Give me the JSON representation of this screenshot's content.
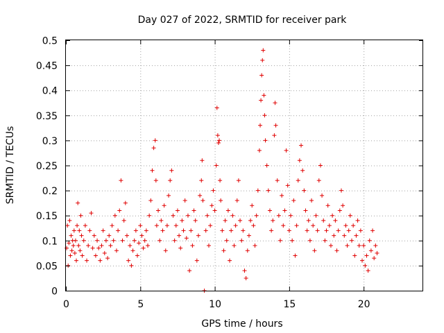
{
  "chart_data": {
    "type": "scatter",
    "title": "Day 027 of 2022, SRMTID for receiver park",
    "xlabel": "GPS time / hours",
    "ylabel": "SRMTID / TECUs",
    "xlim": [
      0,
      24
    ],
    "ylim": [
      0,
      0.5
    ],
    "xticks": [
      0,
      5,
      10,
      15,
      20
    ],
    "yticks": [
      0,
      0.05,
      0.1,
      0.15,
      0.2,
      0.25,
      0.3,
      0.35,
      0.4,
      0.45,
      0.5
    ],
    "xtick_labels": [
      "0",
      "5",
      "10",
      "15",
      "20"
    ],
    "ytick_labels": [
      "0",
      "0.05",
      "0.1",
      "0.15",
      "0.2",
      "0.25",
      "0.3",
      "0.35",
      "0.4",
      "0.45",
      "0.5"
    ],
    "grid": true,
    "marker": "+",
    "color": "#e00000",
    "series": [
      {
        "name": "SRMTID",
        "points": [
          [
            0.05,
            0.085
          ],
          [
            0.1,
            0.13
          ],
          [
            0.15,
            0.05
          ],
          [
            0.2,
            0.095
          ],
          [
            0.25,
            0.14
          ],
          [
            0.3,
            0.07
          ],
          [
            0.35,
            0.11
          ],
          [
            0.4,
            0.08
          ],
          [
            0.45,
            0.1
          ],
          [
            0.5,
            0.09
          ],
          [
            0.55,
            0.12
          ],
          [
            0.6,
            0.075
          ],
          [
            0.65,
            0.1
          ],
          [
            0.7,
            0.06
          ],
          [
            0.75,
            0.13
          ],
          [
            0.8,
            0.175
          ],
          [
            0.85,
            0.09
          ],
          [
            0.9,
            0.12
          ],
          [
            0.95,
            0.08
          ],
          [
            1.0,
            0.15
          ],
          [
            1.05,
            0.11
          ],
          [
            1.1,
            0.07
          ],
          [
            1.2,
            0.1
          ],
          [
            1.3,
            0.13
          ],
          [
            1.4,
            0.06
          ],
          [
            1.5,
            0.09
          ],
          [
            1.6,
            0.12
          ],
          [
            1.7,
            0.155
          ],
          [
            1.8,
            0.085
          ],
          [
            1.9,
            0.11
          ],
          [
            2.0,
            0.07
          ],
          [
            2.1,
            0.1
          ],
          [
            2.2,
            0.085
          ],
          [
            2.3,
            0.06
          ],
          [
            2.4,
            0.09
          ],
          [
            2.5,
            0.12
          ],
          [
            2.6,
            0.075
          ],
          [
            2.7,
            0.1
          ],
          [
            2.8,
            0.065
          ],
          [
            2.9,
            0.11
          ],
          [
            3.0,
            0.09
          ],
          [
            3.1,
            0.13
          ],
          [
            3.2,
            0.1
          ],
          [
            3.3,
            0.15
          ],
          [
            3.4,
            0.08
          ],
          [
            3.5,
            0.12
          ],
          [
            3.6,
            0.16
          ],
          [
            3.7,
            0.22
          ],
          [
            3.8,
            0.1
          ],
          [
            3.9,
            0.14
          ],
          [
            4.0,
            0.175
          ],
          [
            4.1,
            0.11
          ],
          [
            4.2,
            0.06
          ],
          [
            4.3,
            0.09
          ],
          [
            4.4,
            0.05
          ],
          [
            4.5,
            0.08
          ],
          [
            4.6,
            0.1
          ],
          [
            4.7,
            0.12
          ],
          [
            4.8,
            0.07
          ],
          [
            4.9,
            0.095
          ],
          [
            5.0,
            0.13
          ],
          [
            5.1,
            0.11
          ],
          [
            5.2,
            0.085
          ],
          [
            5.3,
            0.1
          ],
          [
            5.4,
            0.12
          ],
          [
            5.5,
            0.09
          ],
          [
            5.6,
            0.15
          ],
          [
            5.7,
            0.18
          ],
          [
            5.8,
            0.24
          ],
          [
            5.9,
            0.285
          ],
          [
            6.0,
            0.3
          ],
          [
            6.05,
            0.22
          ],
          [
            6.1,
            0.13
          ],
          [
            6.2,
            0.16
          ],
          [
            6.3,
            0.1
          ],
          [
            6.4,
            0.14
          ],
          [
            6.5,
            0.12
          ],
          [
            6.6,
            0.17
          ],
          [
            6.7,
            0.08
          ],
          [
            6.8,
            0.13
          ],
          [
            6.9,
            0.19
          ],
          [
            7.0,
            0.22
          ],
          [
            7.1,
            0.24
          ],
          [
            7.2,
            0.15
          ],
          [
            7.3,
            0.1
          ],
          [
            7.4,
            0.13
          ],
          [
            7.5,
            0.16
          ],
          [
            7.6,
            0.11
          ],
          [
            7.7,
            0.085
          ],
          [
            7.8,
            0.14
          ],
          [
            7.9,
            0.12
          ],
          [
            8.0,
            0.18
          ],
          [
            8.1,
            0.105
          ],
          [
            8.2,
            0.15
          ],
          [
            8.3,
            0.04
          ],
          [
            8.4,
            0.12
          ],
          [
            8.5,
            0.09
          ],
          [
            8.6,
            0.16
          ],
          [
            8.7,
            0.14
          ],
          [
            8.8,
            0.06
          ],
          [
            8.9,
            0.11
          ],
          [
            9.0,
            0.19
          ],
          [
            9.1,
            0.22
          ],
          [
            9.15,
            0.26
          ],
          [
            9.2,
            0.18
          ],
          [
            9.3,
            0.0
          ],
          [
            9.4,
            0.12
          ],
          [
            9.5,
            0.15
          ],
          [
            9.6,
            0.09
          ],
          [
            9.7,
            0.13
          ],
          [
            9.8,
            0.17
          ],
          [
            9.9,
            0.2
          ],
          [
            10.0,
            0.16
          ],
          [
            10.1,
            0.25
          ],
          [
            10.15,
            0.365
          ],
          [
            10.2,
            0.31
          ],
          [
            10.25,
            0.295
          ],
          [
            10.3,
            0.3
          ],
          [
            10.35,
            0.22
          ],
          [
            10.4,
            0.18
          ],
          [
            10.5,
            0.12
          ],
          [
            10.6,
            0.08
          ],
          [
            10.7,
            0.14
          ],
          [
            10.8,
            0.1
          ],
          [
            10.9,
            0.16
          ],
          [
            11.0,
            0.06
          ],
          [
            11.1,
            0.12
          ],
          [
            11.2,
            0.15
          ],
          [
            11.3,
            0.09
          ],
          [
            11.4,
            0.13
          ],
          [
            11.5,
            0.18
          ],
          [
            11.6,
            0.22
          ],
          [
            11.7,
            0.14
          ],
          [
            11.8,
            0.1
          ],
          [
            11.9,
            0.12
          ],
          [
            12.0,
            0.04
          ],
          [
            12.1,
            0.025
          ],
          [
            12.2,
            0.08
          ],
          [
            12.3,
            0.11
          ],
          [
            12.4,
            0.14
          ],
          [
            12.5,
            0.17
          ],
          [
            12.6,
            0.13
          ],
          [
            12.7,
            0.09
          ],
          [
            12.8,
            0.15
          ],
          [
            12.9,
            0.2
          ],
          [
            13.0,
            0.28
          ],
          [
            13.05,
            0.33
          ],
          [
            13.1,
            0.38
          ],
          [
            13.15,
            0.43
          ],
          [
            13.2,
            0.46
          ],
          [
            13.25,
            0.48
          ],
          [
            13.3,
            0.39
          ],
          [
            13.35,
            0.35
          ],
          [
            13.4,
            0.3
          ],
          [
            13.5,
            0.25
          ],
          [
            13.6,
            0.2
          ],
          [
            13.7,
            0.16
          ],
          [
            13.8,
            0.12
          ],
          [
            13.9,
            0.14
          ],
          [
            14.0,
            0.31
          ],
          [
            14.05,
            0.375
          ],
          [
            14.1,
            0.33
          ],
          [
            14.2,
            0.22
          ],
          [
            14.3,
            0.15
          ],
          [
            14.4,
            0.1
          ],
          [
            14.5,
            0.19
          ],
          [
            14.6,
            0.13
          ],
          [
            14.7,
            0.16
          ],
          [
            14.8,
            0.28
          ],
          [
            14.9,
            0.21
          ],
          [
            15.0,
            0.12
          ],
          [
            15.1,
            0.15
          ],
          [
            15.2,
            0.1
          ],
          [
            15.3,
            0.18
          ],
          [
            15.4,
            0.07
          ],
          [
            15.5,
            0.13
          ],
          [
            15.6,
            0.22
          ],
          [
            15.7,
            0.26
          ],
          [
            15.8,
            0.29
          ],
          [
            15.9,
            0.24
          ],
          [
            16.0,
            0.2
          ],
          [
            16.1,
            0.16
          ],
          [
            16.2,
            0.12
          ],
          [
            16.3,
            0.14
          ],
          [
            16.4,
            0.1
          ],
          [
            16.5,
            0.18
          ],
          [
            16.6,
            0.13
          ],
          [
            16.7,
            0.08
          ],
          [
            16.8,
            0.15
          ],
          [
            16.9,
            0.12
          ],
          [
            17.0,
            0.22
          ],
          [
            17.1,
            0.25
          ],
          [
            17.2,
            0.19
          ],
          [
            17.3,
            0.14
          ],
          [
            17.4,
            0.1
          ],
          [
            17.5,
            0.12
          ],
          [
            17.6,
            0.17
          ],
          [
            17.7,
            0.13
          ],
          [
            17.8,
            0.09
          ],
          [
            17.9,
            0.15
          ],
          [
            18.0,
            0.11
          ],
          [
            18.1,
            0.14
          ],
          [
            18.2,
            0.08
          ],
          [
            18.3,
            0.12
          ],
          [
            18.4,
            0.16
          ],
          [
            18.5,
            0.2
          ],
          [
            18.6,
            0.17
          ],
          [
            18.7,
            0.11
          ],
          [
            18.8,
            0.13
          ],
          [
            18.9,
            0.09
          ],
          [
            19.0,
            0.12
          ],
          [
            19.1,
            0.15
          ],
          [
            19.2,
            0.1
          ],
          [
            19.3,
            0.13
          ],
          [
            19.4,
            0.07
          ],
          [
            19.5,
            0.11
          ],
          [
            19.6,
            0.14
          ],
          [
            19.7,
            0.09
          ],
          [
            19.8,
            0.12
          ],
          [
            19.9,
            0.06
          ],
          [
            20.0,
            0.09
          ],
          [
            20.1,
            0.05
          ],
          [
            20.2,
            0.07
          ],
          [
            20.3,
            0.04
          ],
          [
            20.4,
            0.1
          ],
          [
            20.5,
            0.08
          ],
          [
            20.6,
            0.12
          ],
          [
            20.7,
            0.065
          ],
          [
            20.8,
            0.09
          ],
          [
            20.9,
            0.075
          ]
        ]
      }
    ]
  }
}
